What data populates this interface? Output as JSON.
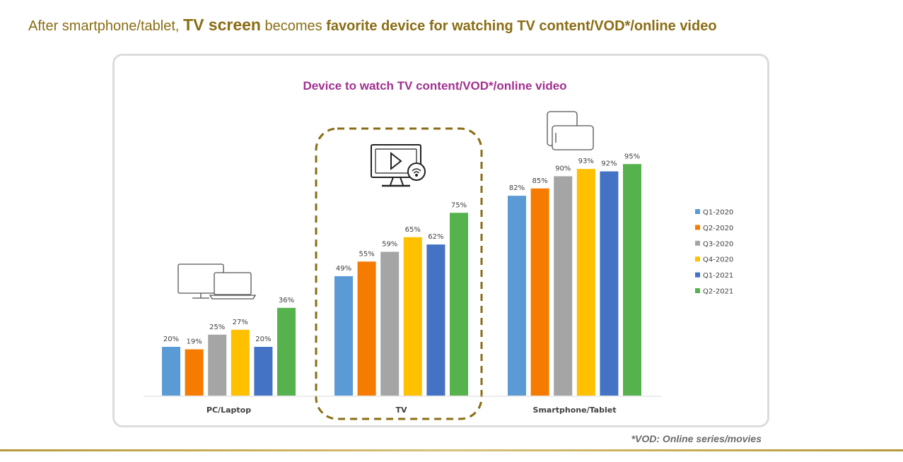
{
  "headline": {
    "part1": "After smartphone/tablet, ",
    "part2": "TV screen",
    "part3": " becomes ",
    "part4": "favorite device for watching TV content/VOD*/online video"
  },
  "footnote": "*VOD: Online series/movies",
  "icons": {
    "pc": "desktop-laptop-icon",
    "tv": "smart-tv-play-icon",
    "mobile": "tablet-phone-icon"
  },
  "chart_data": {
    "type": "bar",
    "title": "Device to watch TV content/VOD*/online video",
    "categories": [
      "PC/Laptop",
      "TV",
      "Smartphone/Tablet"
    ],
    "series": [
      {
        "name": "Q1-2020",
        "color": "#5b9bd5",
        "values": [
          20,
          49,
          82
        ]
      },
      {
        "name": "Q2-2020",
        "color": "#f57c00",
        "values": [
          19,
          55,
          85
        ]
      },
      {
        "name": "Q3-2020",
        "color": "#a5a5a5",
        "values": [
          25,
          59,
          90
        ]
      },
      {
        "name": "Q4-2020",
        "color": "#ffc000",
        "values": [
          27,
          65,
          93
        ]
      },
      {
        "name": "Q1-2021",
        "color": "#4472c4",
        "values": [
          20,
          62,
          92
        ]
      },
      {
        "name": "Q2-2021",
        "color": "#56b24d",
        "values": [
          36,
          75,
          95
        ]
      }
    ],
    "value_suffix": "%",
    "ylim": [
      0,
      100
    ],
    "grid": false,
    "legend_position": "right",
    "highlight_category": "TV",
    "highlight_color": "#8a6d14"
  }
}
